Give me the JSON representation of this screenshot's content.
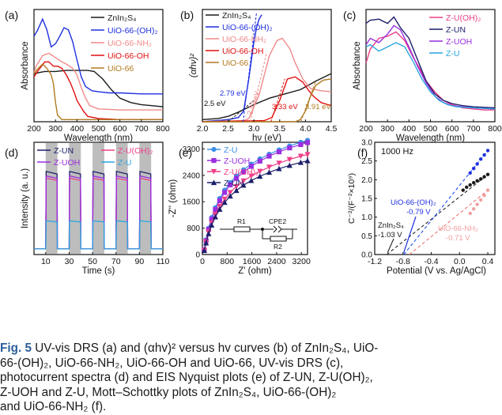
{
  "colors": {
    "black": "#1a1a1a",
    "blue": "#1f2fe0",
    "pink": "#f08a8a",
    "red": "#e01010",
    "brown": "#b07a20",
    "magenta": "#ee3e88",
    "navy": "#1c1f6b",
    "purple": "#9a2ee0",
    "cyan": "#2aa6e0",
    "lightblue": "#3b8fe6",
    "lightred": "#f0a0a0",
    "blackdash": "#222222",
    "bluedash": "#1e4ef0",
    "reddash": "#f07070",
    "gray": "#bdbdbd"
  },
  "panels": {
    "a": "(a)",
    "b": "(b)",
    "c": "(c)",
    "d": "(d)",
    "e": "(e)",
    "f": "(f)"
  },
  "chart_data": [
    {
      "panel": "a",
      "type": "line",
      "xlabel": "Wavelength (nm)",
      "ylabel": "Absorbance",
      "xlim": [
        200,
        800
      ],
      "xticks": [
        200,
        300,
        400,
        500,
        600,
        700,
        800
      ],
      "series": [
        {
          "name": "ZnIn2S4",
          "color": "black",
          "x": [
            200,
            250,
            300,
            350,
            400,
            450,
            480,
            520,
            560,
            600,
            650,
            700,
            750,
            800
          ],
          "y": [
            0.45,
            0.47,
            0.47,
            0.48,
            0.48,
            0.48,
            0.47,
            0.4,
            0.3,
            0.22,
            0.18,
            0.16,
            0.15,
            0.14
          ]
        },
        {
          "name": "UiO-66-(OH)2",
          "color": "blue",
          "x": [
            200,
            215,
            240,
            260,
            280,
            300,
            320,
            340,
            360,
            380,
            400,
            420,
            440,
            470,
            500,
            550,
            600,
            700,
            800
          ],
          "y": [
            0.8,
            0.85,
            0.96,
            0.86,
            0.7,
            0.73,
            0.8,
            0.88,
            0.86,
            0.75,
            0.58,
            0.42,
            0.33,
            0.29,
            0.28,
            0.27,
            0.27,
            0.26,
            0.26
          ]
        },
        {
          "name": "UiO-66-NH2",
          "color": "pink",
          "x": [
            200,
            210,
            240,
            270,
            300,
            330,
            350,
            380,
            400,
            420,
            440,
            460,
            500,
            600,
            800
          ],
          "y": [
            0.46,
            0.52,
            0.62,
            0.64,
            0.6,
            0.56,
            0.54,
            0.5,
            0.44,
            0.32,
            0.22,
            0.15,
            0.12,
            0.11,
            0.11
          ]
        },
        {
          "name": "UiO-66-OH",
          "color": "red",
          "x": [
            200,
            220,
            250,
            270,
            290,
            310,
            330,
            350,
            370,
            390,
            400,
            430,
            450,
            500,
            600,
            800
          ],
          "y": [
            0.42,
            0.48,
            0.56,
            0.56,
            0.52,
            0.52,
            0.5,
            0.44,
            0.36,
            0.26,
            0.2,
            0.1,
            0.05,
            0.03,
            0.02,
            0.02
          ]
        },
        {
          "name": "UiO-66",
          "color": "brown",
          "x": [
            200,
            220,
            240,
            260,
            280,
            290,
            300,
            310,
            330,
            400,
            800
          ],
          "y": [
            0.45,
            0.5,
            0.54,
            0.5,
            0.44,
            0.36,
            0.18,
            0.06,
            0.02,
            0.02,
            0.02
          ]
        }
      ]
    },
    {
      "panel": "b",
      "type": "line",
      "xlabel": "hν (eV)",
      "ylabel": "(αhν)²",
      "xlim": [
        2.0,
        4.5
      ],
      "xticks": [
        2.0,
        2.5,
        3.0,
        3.5,
        4.0,
        4.5
      ],
      "series": [
        {
          "name": "ZnIn2S4",
          "color": "black",
          "x": [
            2.0,
            2.3,
            2.5,
            2.7,
            3.0,
            3.3,
            3.6,
            3.9,
            4.2,
            4.5
          ],
          "y": [
            0.02,
            0.03,
            0.05,
            0.09,
            0.16,
            0.22,
            0.26,
            0.3,
            0.38,
            0.45
          ]
        },
        {
          "name": "UiO-66-(OH)2",
          "color": "blue",
          "x": [
            2.0,
            2.5,
            2.7,
            2.8,
            2.9,
            3.0,
            3.05,
            3.1,
            3.15
          ],
          "y": [
            0.0,
            0.02,
            0.04,
            0.1,
            0.4,
            0.75,
            0.88,
            0.96,
            1.0
          ]
        },
        {
          "name": "UiO-66-NH2",
          "color": "pink",
          "x": [
            2.0,
            2.8,
            2.9,
            3.1,
            3.3,
            3.45,
            3.55,
            3.7,
            3.8,
            3.95,
            4.1,
            4.3,
            4.5
          ],
          "y": [
            0.0,
            0.01,
            0.03,
            0.25,
            0.62,
            0.76,
            0.78,
            0.68,
            0.55,
            0.4,
            0.31,
            0.29,
            0.28
          ]
        },
        {
          "name": "UiO-66-OH",
          "color": "red",
          "x": [
            2.0,
            3.2,
            3.35,
            3.5,
            3.65,
            3.8,
            3.95,
            4.05,
            4.15,
            4.3,
            4.5
          ],
          "y": [
            0.0,
            0.01,
            0.04,
            0.2,
            0.4,
            0.42,
            0.37,
            0.3,
            0.24,
            0.18,
            0.15
          ]
        },
        {
          "name": "UiO-66",
          "color": "brown",
          "x": [
            2.0,
            3.8,
            3.9,
            4.0,
            4.1,
            4.2,
            4.35,
            4.5
          ],
          "y": [
            0.0,
            0.0,
            0.02,
            0.1,
            0.24,
            0.34,
            0.39,
            0.4
          ]
        }
      ],
      "annotations": [
        "2.5 eV",
        "2.79 eV",
        "2.93 eV",
        "3.33 eV",
        "3.91 eV"
      ]
    },
    {
      "panel": "c",
      "type": "line",
      "xlabel": "Wavelength (nm)",
      "ylabel": "Absorbance",
      "xlim": [
        200,
        800
      ],
      "xticks": [
        200,
        300,
        400,
        500,
        600,
        700,
        800
      ],
      "series": [
        {
          "name": "Z-U(OH)2",
          "color": "magenta",
          "x": [
            200,
            220,
            260,
            300,
            340,
            380,
            420,
            450,
            480,
            520,
            560,
            600,
            650,
            700,
            750,
            800
          ],
          "y": [
            0.55,
            0.68,
            0.78,
            0.8,
            0.84,
            0.76,
            0.6,
            0.5,
            0.38,
            0.28,
            0.2,
            0.16,
            0.13,
            0.12,
            0.11,
            0.11
          ]
        },
        {
          "name": "Z-UN",
          "color": "navy",
          "x": [
            200,
            220,
            260,
            300,
            330,
            360,
            400,
            440,
            480,
            520,
            560,
            600,
            650,
            700,
            800
          ],
          "y": [
            0.92,
            0.95,
            0.96,
            0.92,
            0.98,
            0.88,
            0.78,
            0.58,
            0.38,
            0.26,
            0.2,
            0.17,
            0.15,
            0.14,
            0.13
          ]
        },
        {
          "name": "Z-UOH",
          "color": "purple",
          "x": [
            200,
            220,
            260,
            300,
            330,
            360,
            400,
            440,
            480,
            520,
            560,
            600,
            700,
            800
          ],
          "y": [
            0.72,
            0.78,
            0.74,
            0.82,
            0.9,
            0.86,
            0.7,
            0.52,
            0.36,
            0.24,
            0.18,
            0.15,
            0.13,
            0.12
          ]
        },
        {
          "name": "Z-U",
          "color": "cyan",
          "x": [
            200,
            220,
            260,
            300,
            340,
            380,
            420,
            460,
            500,
            540,
            580,
            620,
            700,
            800
          ],
          "y": [
            0.7,
            0.72,
            0.66,
            0.7,
            0.74,
            0.7,
            0.56,
            0.4,
            0.28,
            0.2,
            0.16,
            0.14,
            0.13,
            0.12
          ]
        }
      ]
    },
    {
      "panel": "d",
      "type": "line",
      "xlabel": "Time (s)",
      "ylabel": "Intensity (a. u.)",
      "xlim": [
        0,
        110
      ],
      "xticks": [
        10,
        30,
        50,
        70,
        90,
        110
      ],
      "light_on_intervals": [
        [
          10,
          20
        ],
        [
          30,
          40
        ],
        [
          50,
          60
        ],
        [
          70,
          80
        ],
        [
          90,
          100
        ]
      ],
      "series": [
        {
          "name": "Z-UN",
          "color": "navy",
          "on": 0.74,
          "off": 0.05
        },
        {
          "name": "Z-U(OH)2",
          "color": "magenta",
          "on": 0.68,
          "off": 0.05
        },
        {
          "name": "Z-UOH",
          "color": "purple",
          "on": 0.7,
          "off": 0.05
        },
        {
          "name": "Z-U",
          "color": "cyan",
          "on": 0.3,
          "off": 0.05
        }
      ]
    },
    {
      "panel": "e",
      "type": "scatter",
      "xlabel": "Z' (ohm)",
      "ylabel": "-Z'' (ohm)",
      "xlim": [
        0,
        3400
      ],
      "ylim": [
        0,
        3400
      ],
      "xticks": [
        0,
        800,
        1600,
        2400,
        3200
      ],
      "yticks": [
        0,
        800,
        1600,
        2400,
        3200
      ],
      "inset": {
        "R1": "R1",
        "CPE2": "CPE2",
        "R2": "R2"
      },
      "series": [
        {
          "name": "Z-U",
          "color": "lightblue",
          "marker": "circle",
          "x": [
            60,
            120,
            200,
            300,
            420,
            560,
            720,
            900,
            1100,
            1330,
            1580,
            1860,
            2160,
            2480,
            2820,
            3180,
            3400
          ],
          "y": [
            150,
            450,
            800,
            1120,
            1420,
            1700,
            1950,
            2180,
            2380,
            2570,
            2740,
            2900,
            3040,
            3170,
            3290,
            3400,
            3460
          ]
        },
        {
          "name": "Z-UOH",
          "color": "purple",
          "marker": "square",
          "x": [
            60,
            120,
            200,
            300,
            420,
            560,
            720,
            900,
            1100,
            1330,
            1580,
            1860,
            2160,
            2480,
            2820,
            3180,
            3400
          ],
          "y": [
            140,
            420,
            760,
            1070,
            1360,
            1630,
            1880,
            2110,
            2310,
            2500,
            2670,
            2830,
            2980,
            3110,
            3230,
            3330,
            3390
          ]
        },
        {
          "name": "Z-U(OH)2",
          "color": "magenta",
          "marker": "triangle-down",
          "x": [
            60,
            120,
            200,
            300,
            420,
            560,
            720,
            900,
            1100,
            1330,
            1580,
            1860,
            2160,
            2480,
            2820,
            3180,
            3400
          ],
          "y": [
            130,
            380,
            680,
            960,
            1220,
            1460,
            1680,
            1880,
            2060,
            2230,
            2380,
            2520,
            2650,
            2770,
            2880,
            2980,
            3030
          ]
        },
        {
          "name": "Z-UN",
          "color": "navy",
          "marker": "triangle-up",
          "x": [
            60,
            120,
            200,
            300,
            420,
            560,
            720,
            900,
            1100,
            1330,
            1580,
            1860,
            2160,
            2480,
            2820,
            3180,
            3400
          ],
          "y": [
            120,
            350,
            630,
            890,
            1140,
            1370,
            1580,
            1770,
            1940,
            2100,
            2240,
            2370,
            2490,
            2600,
            2700,
            2790,
            2840
          ]
        }
      ]
    },
    {
      "panel": "f",
      "type": "scatter",
      "xlabel": "Potential (V vs. Ag/AgCl)",
      "ylabel": "C⁻²/(F⁻²×10⁹)",
      "xlim": [
        -1.2,
        0.5
      ],
      "ylim": [
        0,
        3.0
      ],
      "xticks": [
        -1.2,
        -0.8,
        -0.4,
        0.0,
        0.4
      ],
      "yticks": [
        0.0,
        0.5,
        1.0,
        1.5,
        2.0,
        2.5,
        3.0
      ],
      "frequency": "1000 Hz",
      "series": [
        {
          "name": "ZnIn2S4",
          "color": "black",
          "x": [
            0.05,
            0.1,
            0.15,
            0.2,
            0.25,
            0.3,
            0.35,
            0.4
          ],
          "y": [
            1.72,
            1.8,
            1.86,
            1.92,
            1.97,
            2.02,
            2.08,
            2.14
          ]
        },
        {
          "name": "UiO-66-(OH)2",
          "color": "blue",
          "x": [
            0.15,
            0.2,
            0.25,
            0.3,
            0.35,
            0.4
          ],
          "y": [
            2.18,
            2.3,
            2.42,
            2.55,
            2.66,
            2.78
          ]
        },
        {
          "name": "UiO-66-NH2",
          "color": "lightred",
          "x": [
            0.15,
            0.2,
            0.25,
            0.3,
            0.35,
            0.4
          ],
          "y": [
            1.1,
            1.22,
            1.34,
            1.46,
            1.58,
            1.72
          ]
        }
      ],
      "fits": [
        {
          "name": "ZnIn2S4",
          "color": "blackdash",
          "intercept": -1.03
        },
        {
          "name": "UiO-66-(OH)2",
          "color": "bluedash",
          "intercept": -0.79
        },
        {
          "name": "UiO-66-NH2",
          "color": "reddash",
          "intercept": -0.71
        }
      ],
      "annotations": {
        "zis_name": "ZnIn₂S₄",
        "zis_val": "-1.03 V",
        "oh2_name": "UiO-66-(OH)₂",
        "oh2_val": "-0.79 V",
        "nh2_name": "UiO-66-NH₂",
        "nh2_val": "-0.71 V"
      }
    }
  ],
  "legend_text": {
    "a": [
      "ZnIn₂S₄",
      "UiO-66-(OH)₂",
      "UiO-66-NH₂",
      "UiO-66-OH",
      "UiO-66"
    ],
    "b": [
      "ZnIn₂S₄",
      "UiO-66-(OH)₂",
      "UiO-66-NH₂",
      "UiO-66-OH",
      "UiO-66"
    ],
    "c": [
      "Z-U(OH)₂",
      "Z-UN",
      "Z-UOH",
      "Z-U"
    ],
    "d": [
      "Z-UN",
      "Z-U(OH)₂",
      "Z-UOH",
      "Z-U"
    ],
    "e": [
      "Z-U",
      "Z-UOH",
      "Z-U(OH)₂",
      "Z-UN"
    ]
  },
  "caption": {
    "fig_label": "Fig. 5",
    "line1": "  UV-vis DRS (a) and (αhv)² versus hv curves (b) of ZnIn₂S₄, UiO-",
    "line2": "66-(OH)₂, UiO-66-NH₂, UiO-66-OH and UiO-66, UV-vis DRS (c),",
    "line3": "photocurrent spectra (d) and EIS Nyquist plots (e) of Z-UN, Z-U(OH)₂,",
    "line4": "Z-UOH and Z-U, Mott–Schottky plots of ZnIn₂S₄, UiO-66-(OH)₂",
    "line5": "and UiO-66-NH₂ (f)."
  }
}
